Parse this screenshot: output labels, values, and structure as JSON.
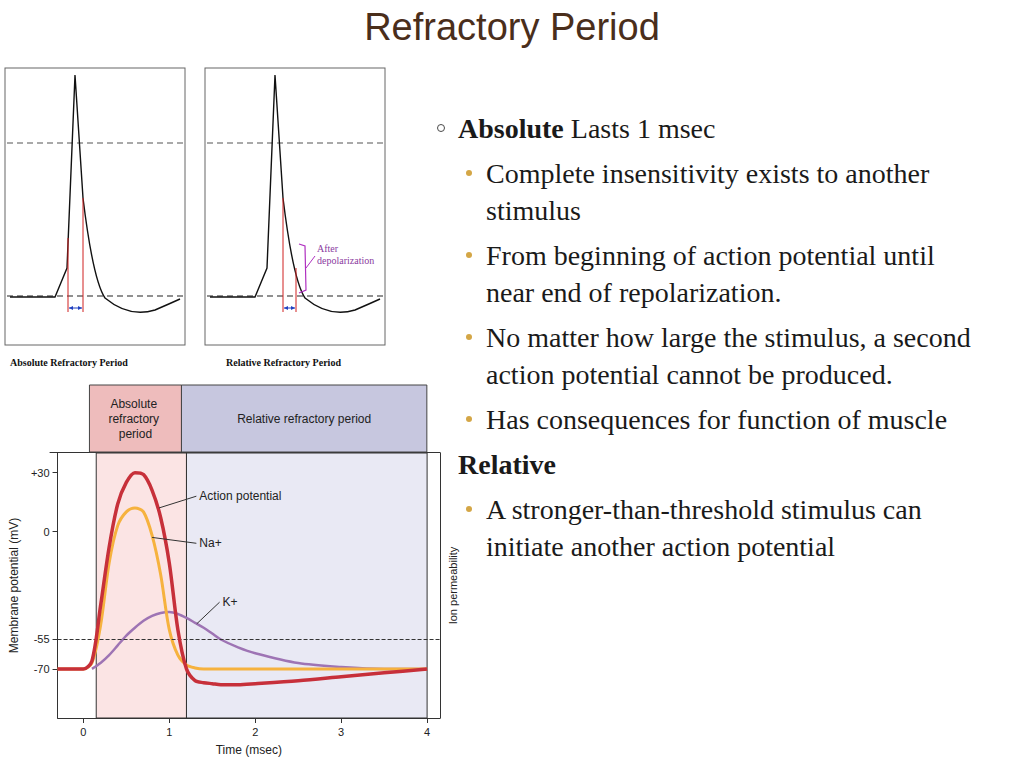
{
  "title": "Refractory Period",
  "sketches": [
    {
      "caption": "Absolute Refractory Period"
    },
    {
      "caption": "Relative Refractory Period",
      "annotation": "After depolarization"
    }
  ],
  "chart_data": {
    "type": "line",
    "x_label": "Time (msec)",
    "y_label": "Membrane potential (mV)",
    "y2_label": "Ion permeability",
    "x": [
      -0.3,
      0,
      0.1,
      0.2,
      0.3,
      0.4,
      0.5,
      0.6,
      0.7,
      0.8,
      0.9,
      1.0,
      1.1,
      1.2,
      1.3,
      1.4,
      1.5,
      1.6,
      1.8,
      2.0,
      2.5,
      3.0,
      3.5,
      4.0
    ],
    "series": [
      {
        "name": "Action potential",
        "color": "#c7303a",
        "label_at": [
          1.35,
          18
        ],
        "points_to": [
          0.88,
          12
        ],
        "values": [
          -70,
          -70,
          -66,
          -38,
          -8,
          14,
          25,
          30,
          29,
          21,
          7,
          -16,
          -50,
          -70,
          -76,
          -77,
          -77.5,
          -78,
          -78,
          -77.5,
          -76,
          -74,
          -72,
          -70
        ]
      },
      {
        "name": "Na+",
        "color": "#f6b23e",
        "label_at": [
          1.35,
          -6
        ],
        "points_to": [
          0.8,
          -3
        ],
        "values": [
          -70,
          -70,
          -67,
          -48,
          -16,
          3,
          10,
          12,
          10,
          -2,
          -22,
          -50,
          -63,
          -68,
          -69.5,
          -70,
          -70,
          -70,
          -70,
          -70,
          -70,
          -70,
          -70,
          -70
        ]
      },
      {
        "name": "K+",
        "color": "#9e74b4",
        "label_at": [
          1.62,
          -36
        ],
        "points_to": [
          1.32,
          -47
        ],
        "values": [
          null,
          null,
          -70,
          -67,
          -63,
          -58,
          -53,
          -49,
          -45.5,
          -43,
          -41.5,
          -41,
          -42,
          -44,
          -46.5,
          -49,
          -52,
          -55,
          -59,
          -62,
          -67,
          -69,
          -70,
          -70
        ]
      }
    ],
    "xlim": [
      -0.3,
      4.15
    ],
    "xticks": [
      0,
      1,
      2,
      3,
      4
    ],
    "ylim": [
      -95,
      40
    ],
    "yticks": [
      {
        "value": 30,
        "label": "+30"
      },
      0,
      -55,
      -70
    ],
    "threshold": -55,
    "regions": [
      {
        "label": "Absolute refractory period",
        "start": 0.15,
        "end": 1.2,
        "color": "#fbe4e4"
      },
      {
        "label": "Relative refractory period",
        "start": 1.2,
        "end": 4.0,
        "color": "#e9e9f4"
      }
    ],
    "grid": false
  },
  "bullets": [
    {
      "heading": "Absolute",
      "text": "Lasts 1 msec",
      "items": [
        "Complete insensitivity exists to another stimulus",
        "From beginning of action potential until near end of repolarization.",
        "No matter how large the stimulus, a second action potential cannot be produced.",
        "Has consequences for function of muscle"
      ]
    },
    {
      "heading": "Relative",
      "items": [
        "A stronger-than-threshold stimulus can initiate another action potential"
      ]
    }
  ]
}
